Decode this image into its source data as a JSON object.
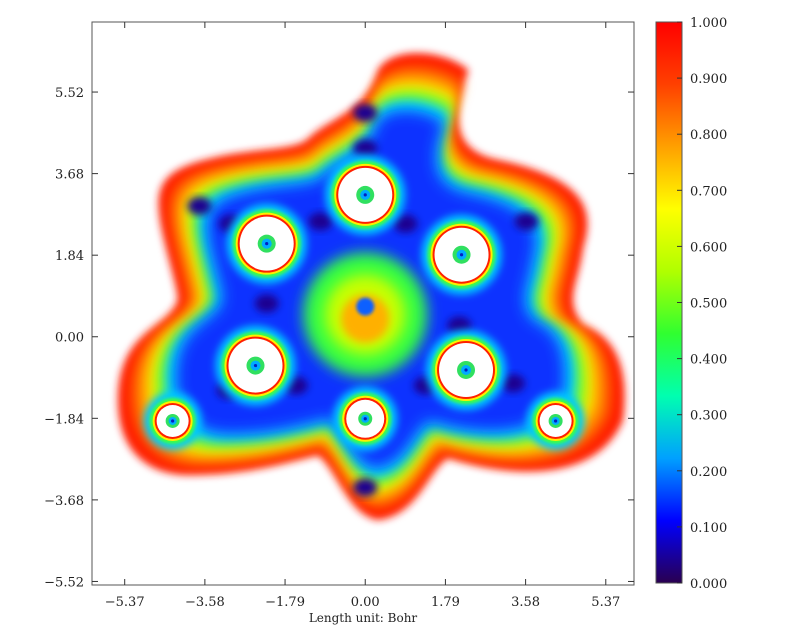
{
  "chart_data": {
    "type": "heatmap",
    "title": "",
    "xlabel": "Length unit: Bohr",
    "ylabel": "",
    "x_ticks": [
      "-5.37",
      "-3.58",
      "-1.79",
      "0.00",
      "1.79",
      "3.58",
      "5.37"
    ],
    "x_tick_values": [
      -5.37,
      -3.58,
      -1.79,
      0.0,
      1.79,
      3.58,
      5.37
    ],
    "y_ticks": [
      "5.52",
      "3.68",
      "1.84",
      "0.00",
      "-1.84",
      "-3.68",
      "-5.52"
    ],
    "y_tick_values": [
      5.52,
      3.68,
      1.84,
      0.0,
      -1.84,
      -3.68,
      -5.52
    ],
    "xlim": [
      -6.1,
      6.0
    ],
    "ylim": [
      -5.6,
      7.1
    ],
    "colorbar": {
      "range": [
        0.0,
        1.0
      ],
      "tick_labels": [
        "1.000",
        "0.900",
        "0.800",
        "0.700",
        "0.600",
        "0.500",
        "0.400",
        "0.300",
        "0.200",
        "0.100",
        "0.000"
      ],
      "tick_values": [
        1.0,
        0.9,
        0.8,
        0.7,
        0.6,
        0.5,
        0.4,
        0.3,
        0.2,
        0.1,
        0.0
      ],
      "colormap": [
        "#2a0050",
        "#0000ff",
        "#00a0ff",
        "#00ffb0",
        "#30ff30",
        "#b0ff00",
        "#ffff00",
        "#ffa000",
        "#ff4000",
        "#ff0000"
      ]
    },
    "atoms": [
      {
        "x": 0.0,
        "y": 3.2
      },
      {
        "x": -2.2,
        "y": 2.1
      },
      {
        "x": 2.15,
        "y": 1.85
      },
      {
        "x": -2.45,
        "y": -0.65
      },
      {
        "x": 2.25,
        "y": -0.75
      },
      {
        "x": 0.0,
        "y": -1.85
      },
      {
        "x": -4.3,
        "y": -1.9
      },
      {
        "x": 4.25,
        "y": -1.9
      }
    ],
    "grid": false
  }
}
